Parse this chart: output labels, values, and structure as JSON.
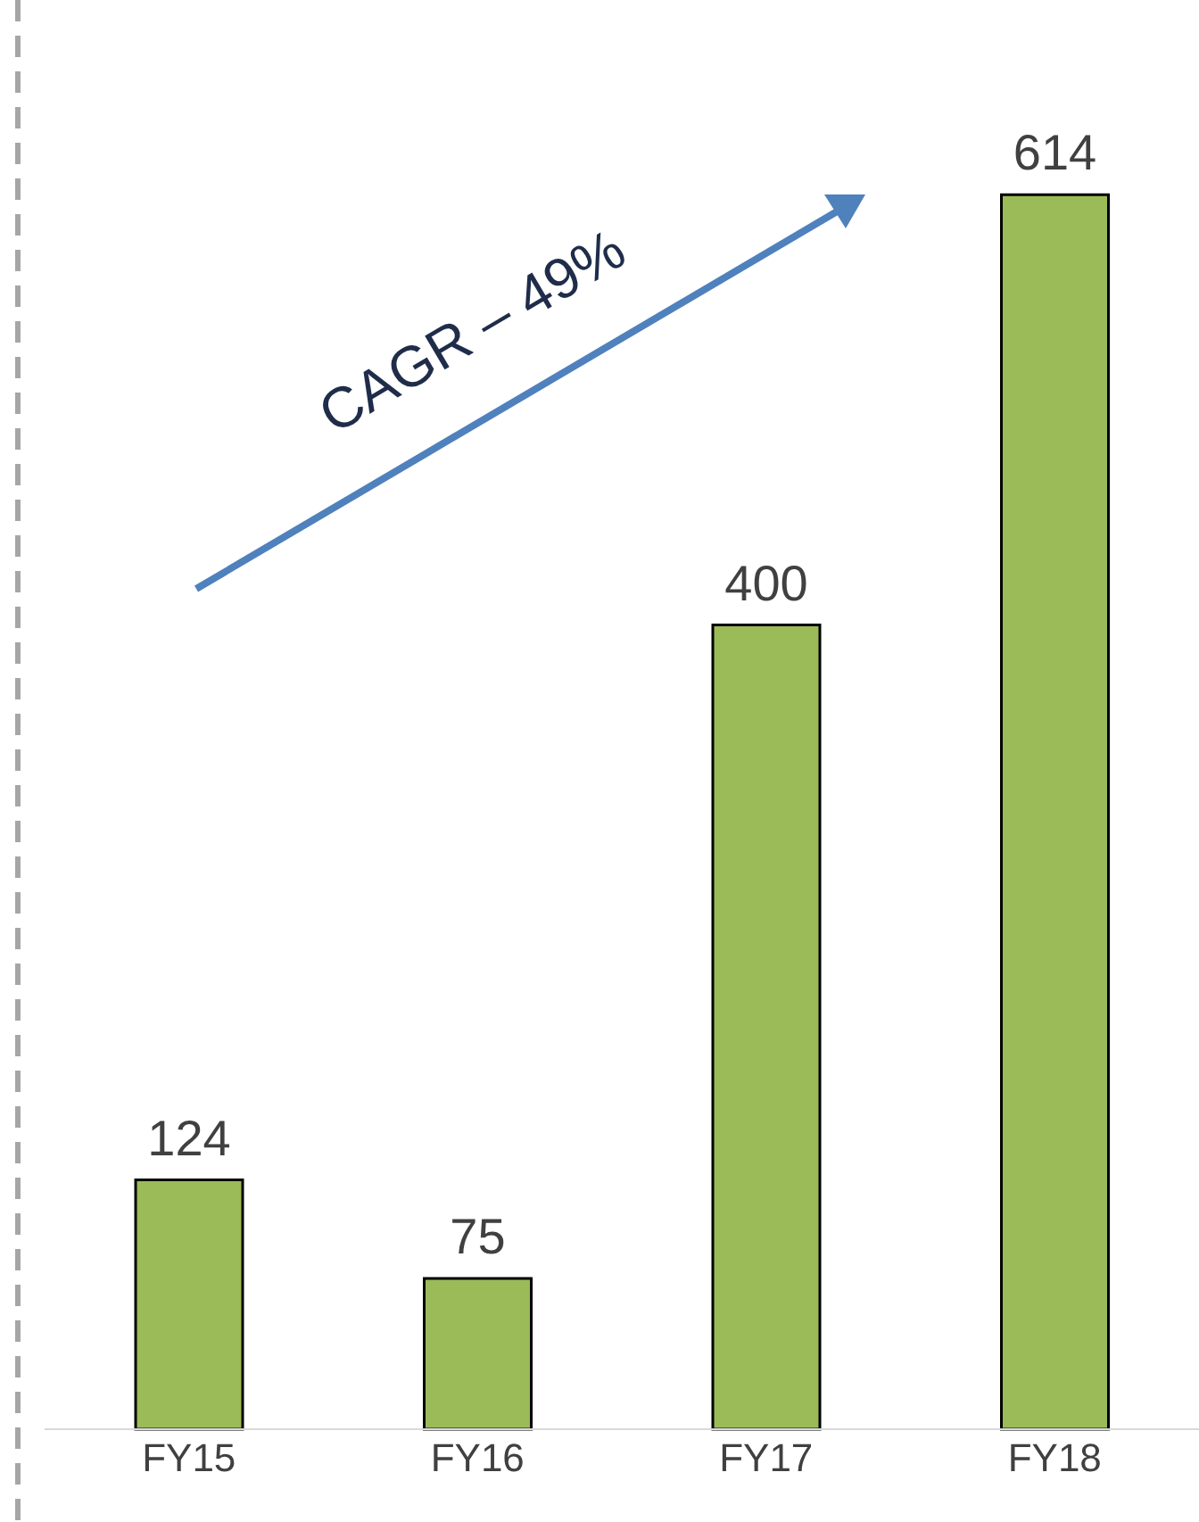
{
  "chart_data": {
    "type": "bar",
    "categories": [
      "FY15",
      "FY16",
      "FY17",
      "FY18"
    ],
    "values": [
      124,
      75,
      400,
      614
    ],
    "color": "#9bbb59",
    "data_labels": true,
    "annotations": [
      "CAGR – 49%"
    ]
  }
}
